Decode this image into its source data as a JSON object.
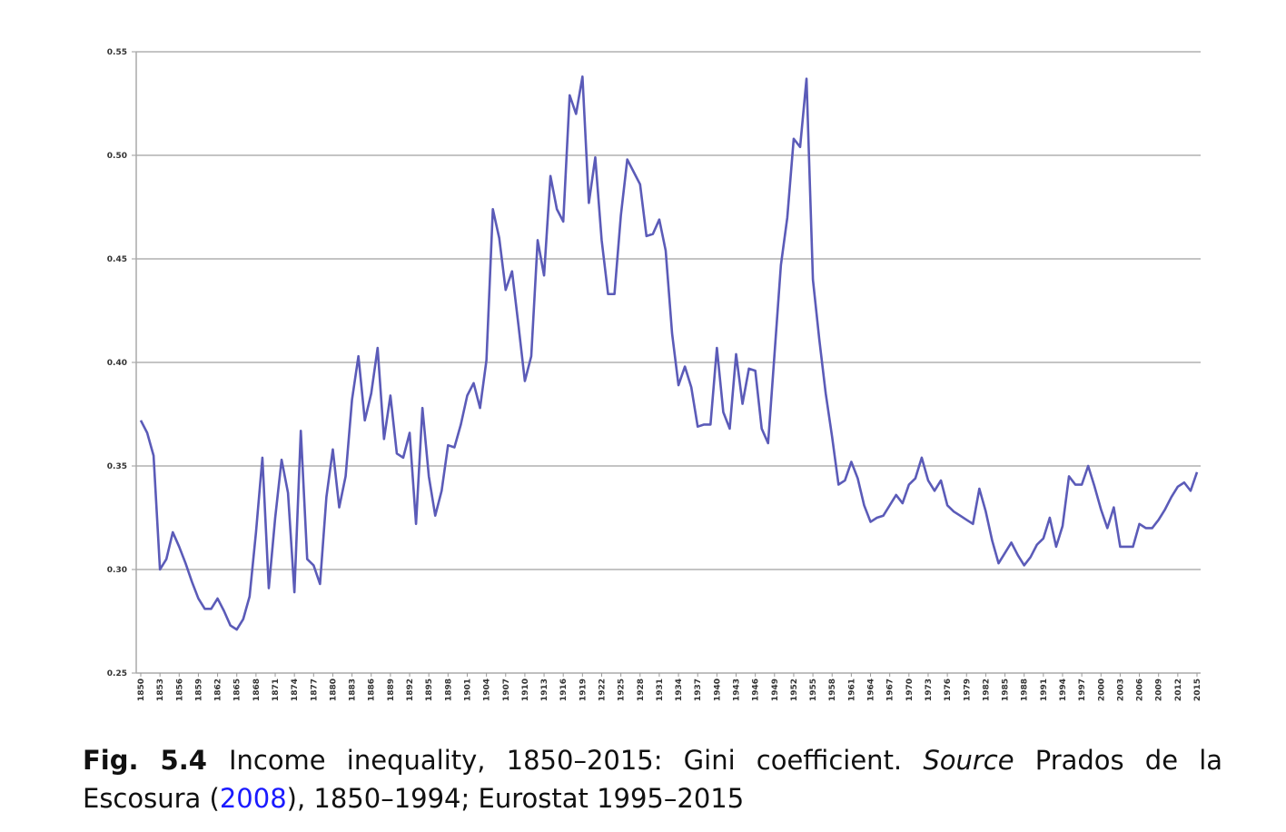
{
  "chart_data": {
    "type": "line",
    "x": [
      1850,
      1851,
      1852,
      1853,
      1854,
      1855,
      1856,
      1857,
      1858,
      1859,
      1860,
      1861,
      1862,
      1863,
      1864,
      1865,
      1866,
      1867,
      1868,
      1869,
      1870,
      1871,
      1872,
      1873,
      1874,
      1875,
      1876,
      1877,
      1878,
      1879,
      1880,
      1881,
      1882,
      1883,
      1884,
      1885,
      1886,
      1887,
      1888,
      1889,
      1890,
      1891,
      1892,
      1893,
      1894,
      1895,
      1896,
      1897,
      1898,
      1899,
      1900,
      1901,
      1902,
      1903,
      1904,
      1905,
      1906,
      1907,
      1908,
      1909,
      1910,
      1911,
      1912,
      1913,
      1914,
      1915,
      1916,
      1917,
      1918,
      1919,
      1920,
      1921,
      1922,
      1923,
      1924,
      1925,
      1926,
      1927,
      1928,
      1929,
      1930,
      1931,
      1932,
      1933,
      1934,
      1935,
      1936,
      1937,
      1938,
      1939,
      1940,
      1941,
      1942,
      1943,
      1944,
      1945,
      1946,
      1947,
      1948,
      1949,
      1950,
      1951,
      1952,
      1953,
      1954,
      1955,
      1956,
      1957,
      1958,
      1959,
      1960,
      1961,
      1962,
      1963,
      1964,
      1965,
      1966,
      1967,
      1968,
      1969,
      1970,
      1971,
      1972,
      1973,
      1974,
      1975,
      1976,
      1977,
      1978,
      1979,
      1980,
      1981,
      1982,
      1983,
      1984,
      1985,
      1986,
      1987,
      1988,
      1989,
      1990,
      1991,
      1992,
      1993,
      1994,
      1995,
      1996,
      1997,
      1998,
      1999,
      2000,
      2001,
      2002,
      2003,
      2004,
      2005,
      2006,
      2007,
      2008,
      2009,
      2010,
      2011,
      2012,
      2013,
      2014,
      2015
    ],
    "series": [
      {
        "color": "#5b5bb8",
        "values": [
          0.372,
          0.366,
          0.355,
          0.3,
          0.305,
          0.318,
          0.311,
          0.303,
          0.294,
          0.286,
          0.281,
          0.281,
          0.286,
          0.28,
          0.273,
          0.271,
          0.276,
          0.287,
          0.318,
          0.354,
          0.291,
          0.325,
          0.353,
          0.337,
          0.289,
          0.367,
          0.305,
          0.302,
          0.293,
          0.335,
          0.358,
          0.33,
          0.345,
          0.382,
          0.403,
          0.372,
          0.385,
          0.407,
          0.363,
          0.384,
          0.356,
          0.354,
          0.366,
          0.322,
          0.378,
          0.345,
          0.326,
          0.338,
          0.36,
          0.359,
          0.37,
          0.384,
          0.39,
          0.378,
          0.401,
          0.474,
          0.46,
          0.435,
          0.444,
          0.418,
          0.391,
          0.403,
          0.459,
          0.442,
          0.49,
          0.474,
          0.468,
          0.529,
          0.52,
          0.538,
          0.477,
          0.499,
          0.459,
          0.433,
          0.433,
          0.471,
          0.498,
          0.492,
          0.486,
          0.461,
          0.462,
          0.469,
          0.454,
          0.414,
          0.389,
          0.398,
          0.388,
          0.369,
          0.37,
          0.37,
          0.407,
          0.376,
          0.368,
          0.404,
          0.38,
          0.397,
          0.396,
          0.368,
          0.361,
          0.404,
          0.447,
          0.47,
          0.508,
          0.504,
          0.537,
          0.44,
          0.411,
          0.385,
          0.364,
          0.341,
          0.343,
          0.352,
          0.344,
          0.331,
          0.323,
          0.325,
          0.326,
          0.331,
          0.336,
          0.332,
          0.341,
          0.344,
          0.354,
          0.343,
          0.338,
          0.343,
          0.331,
          0.328,
          0.326,
          0.324,
          0.322,
          0.339,
          0.328,
          0.314,
          0.303,
          0.308,
          0.313,
          0.307,
          0.302,
          0.306,
          0.312,
          0.315,
          0.325,
          0.311,
          0.321,
          0.345,
          0.341,
          0.341,
          0.35,
          0.34,
          0.329,
          0.32,
          0.33,
          0.311,
          0.311,
          0.311,
          0.322,
          0.32,
          0.32,
          0.324,
          0.329,
          0.335,
          0.34,
          0.342,
          0.338,
          0.347
        ]
      }
    ],
    "xlim": [
      1850,
      2015
    ],
    "xticks": [
      1850,
      1853,
      1856,
      1859,
      1862,
      1865,
      1868,
      1871,
      1874,
      1877,
      1880,
      1883,
      1886,
      1889,
      1892,
      1895,
      1898,
      1901,
      1904,
      1907,
      1910,
      1913,
      1916,
      1919,
      1922,
      1925,
      1928,
      1931,
      1934,
      1937,
      1940,
      1943,
      1946,
      1949,
      1952,
      1955,
      1958,
      1961,
      1964,
      1967,
      1970,
      1973,
      1976,
      1979,
      1982,
      1985,
      1988,
      1991,
      1994,
      1997,
      2000,
      2003,
      2006,
      2009,
      2012,
      2015
    ],
    "ylim": [
      0.25,
      0.55
    ],
    "yticks": [
      {
        "value": 0.25,
        "label": "0.25"
      },
      {
        "value": 0.3,
        "label": "0.30"
      },
      {
        "value": 0.35,
        "label": "0.35"
      },
      {
        "value": 0.4,
        "label": "0.40"
      },
      {
        "value": 0.45,
        "label": "0.45"
      },
      {
        "value": 0.5,
        "label": "0.50"
      },
      {
        "value": 0.55,
        "label": "0.55"
      }
    ],
    "grid": true
  },
  "caption": {
    "label": "Fig. 5.4",
    "text": "Income inequality, 1850–2015: Gini coefficient.",
    "source_label": "Source",
    "source_pre": "Prados de la Escosura (",
    "source_link": "2008",
    "source_post": "), 1850–1994; Eurostat 1995–2015"
  }
}
